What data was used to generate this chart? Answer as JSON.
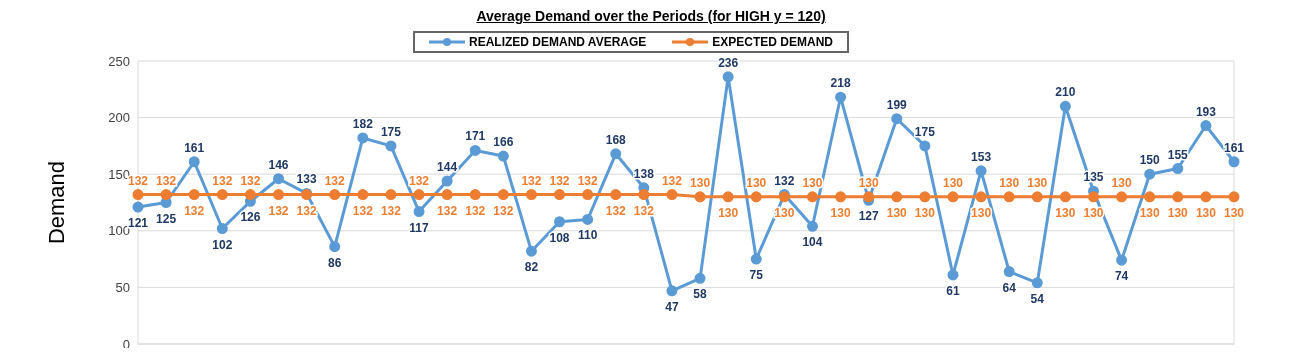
{
  "chart_data": {
    "type": "line",
    "title": "Average Demand over the Periods (for HIGH y = 120)",
    "ylabel": "Demand",
    "categories": [
      null,
      null,
      null,
      null,
      null,
      null,
      null,
      null,
      null,
      null,
      null,
      null,
      null,
      null,
      null,
      null,
      null,
      null,
      null,
      null,
      null,
      null,
      null,
      null,
      null,
      null,
      null,
      null,
      null,
      null,
      null,
      null,
      null,
      null,
      null,
      null,
      null,
      null,
      null,
      null
    ],
    "series": [
      {
        "name": "REALIZED DEMAND AVERAGE",
        "color": "#5b9bd5",
        "values": [
          121,
          125,
          161,
          102,
          126,
          146,
          133,
          86,
          182,
          175,
          117,
          144,
          171,
          166,
          82,
          108,
          110,
          168,
          138,
          47,
          58,
          236,
          75,
          132,
          104,
          218,
          127,
          199,
          175,
          61,
          153,
          64,
          54,
          210,
          135,
          74,
          150,
          155,
          193,
          161
        ]
      },
      {
        "name": "EXPECTED DEMAND",
        "color": "#ed7d31",
        "values": [
          132,
          132,
          132,
          132,
          132,
          132,
          132,
          132,
          132,
          132,
          132,
          132,
          132,
          132,
          132,
          132,
          132,
          132,
          132,
          132,
          130,
          130,
          130,
          130,
          130,
          130,
          130,
          130,
          130,
          130,
          130,
          130,
          130,
          130,
          130,
          130,
          130,
          130,
          130,
          130
        ]
      }
    ],
    "ylim": [
      0,
      250
    ],
    "yticks": [
      0,
      50,
      100,
      150,
      200,
      250
    ],
    "grid": true,
    "legend": "top",
    "marker": "circle",
    "data_labels": true
  }
}
